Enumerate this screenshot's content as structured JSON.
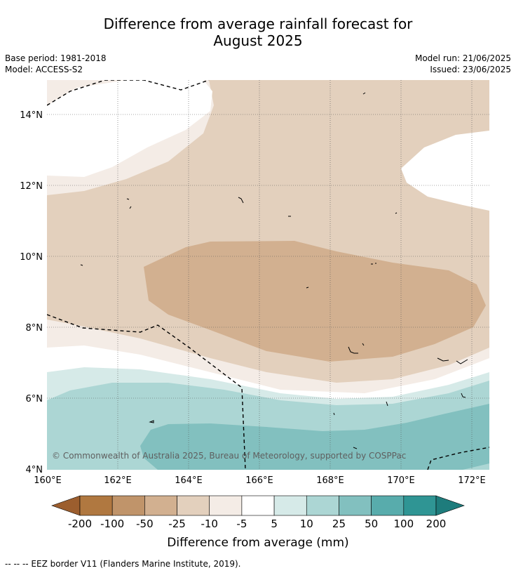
{
  "title": {
    "line1": "Difference from average rainfall forecast for",
    "line2": "August 2025"
  },
  "info": {
    "base_period": "Base period: 1981-2018",
    "model": "Model: ACCESS-S2",
    "model_run": "Model run: 21/06/2025",
    "issued": "Issued: 23/06/2025"
  },
  "axes": {
    "lat_labels": [
      "14°N",
      "12°N",
      "10°N",
      "8°N",
      "6°N",
      "4°N"
    ],
    "lon_labels": [
      "160°E",
      "162°E",
      "164°E",
      "166°E",
      "168°E",
      "170°E",
      "172°E"
    ]
  },
  "copyright": "© Commonwealth of Australia 2025, Bureau of Meteorology, supported by COSPPac",
  "colorbar": {
    "label": "Difference from average (mm)",
    "ticks": [
      "-200",
      "-100",
      "-50",
      "-25",
      "-10",
      "-5",
      "5",
      "10",
      "25",
      "50",
      "100",
      "200"
    ],
    "colors": [
      "#9c5e2e",
      "#b07840",
      "#c0946a",
      "#d2b090",
      "#e3d0bd",
      "#f4ece6",
      "#ffffff",
      "#d6eae8",
      "#acd6d4",
      "#82c0bf",
      "#58acac",
      "#2f9594",
      "#1e7c7c"
    ]
  },
  "footnote": "--  --  -- EEZ border V11 (Flanders Marine Institute, 2019)."
}
